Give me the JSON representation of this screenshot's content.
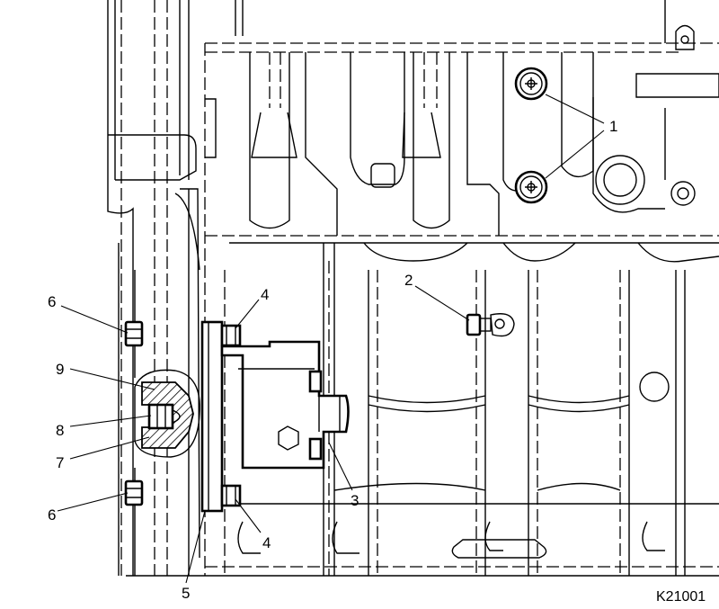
{
  "figure_id": "K21001",
  "callouts": [
    {
      "key": "c1",
      "text": "1"
    },
    {
      "key": "c2",
      "text": "2"
    },
    {
      "key": "c3",
      "text": "3"
    },
    {
      "key": "c4a",
      "text": "4"
    },
    {
      "key": "c4b",
      "text": "4"
    },
    {
      "key": "c5",
      "text": "5"
    },
    {
      "key": "c6a",
      "text": "6"
    },
    {
      "key": "c6b",
      "text": "6"
    },
    {
      "key": "c7",
      "text": "7"
    },
    {
      "key": "c8",
      "text": "8"
    },
    {
      "key": "c9",
      "text": "9"
    }
  ]
}
